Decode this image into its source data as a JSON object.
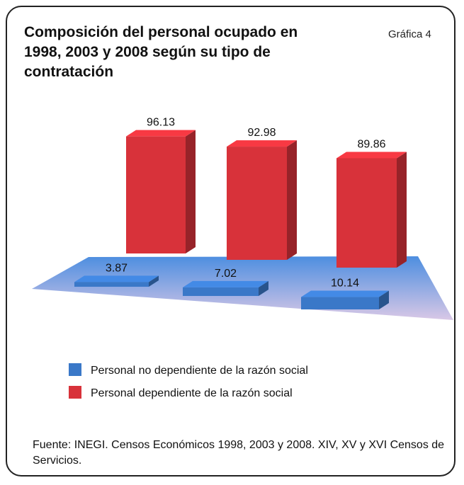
{
  "chart_data": {
    "type": "bar3d",
    "title": "Composición del personal ocupado en 1998, 2003 y 2008 según su tipo de contratación",
    "label": "Gráfica 4",
    "series": [
      {
        "name": "Personal no dependiente de la razón social",
        "color": "#3a78c8",
        "values": [
          3.87,
          7.02,
          10.14
        ]
      },
      {
        "name": "Personal dependiente de la razón social",
        "color": "#d8323a",
        "values": [
          96.13,
          92.98,
          89.86
        ]
      }
    ],
    "source": "Fuente: INEGI. Censos Económicos 1998, 2003 y 2008. XIV, XV y XVI Censos de Servicios."
  }
}
